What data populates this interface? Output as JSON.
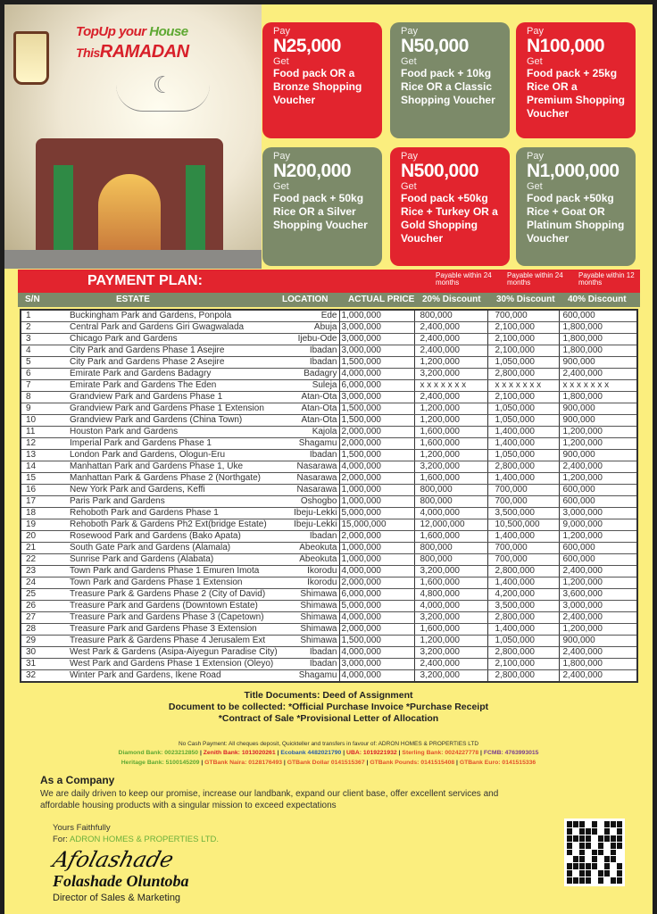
{
  "header": {
    "title_line1_a": "TopUp your ",
    "title_line1_b": "House",
    "title_line2_a": "This",
    "title_line2_b": "RAMADAN"
  },
  "offers": [
    {
      "pay": "Pay",
      "amount": "N25,000",
      "get": "Get",
      "desc": "Food pack OR a Bronze Shopping Voucher",
      "color": "#e2242e"
    },
    {
      "pay": "Pay",
      "amount": "N50,000",
      "get": "Get",
      "desc": "Food pack + 10kg Rice OR a Classic Shopping Voucher",
      "color": "#7c8a69"
    },
    {
      "pay": "Pay",
      "amount": "N100,000",
      "get": "Get",
      "desc": "Food pack + 25kg Rice OR a Premium Shopping Voucher",
      "color": "#e2242e"
    },
    {
      "pay": "Pay",
      "amount": "N200,000",
      "get": "Get",
      "desc": "Food pack + 50kg Rice OR a Silver Shopping Voucher",
      "color": "#7c8a69"
    },
    {
      "pay": "Pay",
      "amount": "N500,000",
      "get": "Get",
      "desc": "Food pack +50kg Rice + Turkey OR a Gold Shopping Voucher",
      "color": "#e2242e"
    },
    {
      "pay": "Pay",
      "amount": "N1,000,000",
      "get": "Get",
      "desc": "Food pack +50kg Rice + Goat OR Platinum Shopping Voucher",
      "color": "#7c8a69"
    }
  ],
  "plan": {
    "title": "PAYMENT PLAN:",
    "payable": [
      "Payable within 24 months",
      "Payable within 24 months",
      "Payable within 12 months"
    ],
    "columns": [
      "S/N",
      "ESTATE",
      "LOCATION",
      "ACTUAL PRICE",
      "20% Discount",
      "30% Discount",
      "40% Discount"
    ],
    "rows": [
      [
        "1",
        "Buckingham Park and Gardens, Ponpola",
        "Ede",
        "1,000,000",
        "800,000",
        "700,000",
        "600,000"
      ],
      [
        "2",
        "Central Park and Gardens Giri Gwagwalada",
        "Abuja",
        "3,000,000",
        "2,400,000",
        "2,100,000",
        "1,800,000"
      ],
      [
        "3",
        "Chicago Park and Gardens",
        "Ijebu-Ode",
        "3,000,000",
        "2,400,000",
        "2,100,000",
        "1,800,000"
      ],
      [
        "4",
        "City Park and Gardens Phase 1 Asejire",
        "Ibadan",
        "3,000,000",
        "2,400,000",
        "2,100,000",
        "1,800,000"
      ],
      [
        "5",
        "City Park and Gardens Phase 2 Asejire",
        "Ibadan",
        "1,500,000",
        "1,200,000",
        "1,050,000",
        "900,000"
      ],
      [
        "6",
        "Emirate Park and Gardens Badagry",
        "Badagry",
        "4,000,000",
        "3,200,000",
        "2,800,000",
        "2,400,000"
      ],
      [
        "7",
        "Emirate Park and Gardens The Eden",
        "Suleja",
        "6,000,000",
        "x x x x x x x",
        "x x x x x x x",
        "x x x x x x x"
      ],
      [
        "8",
        "Grandview Park and Gardens Phase 1",
        "Atan-Ota",
        "3,000,000",
        "2,400,000",
        "2,100,000",
        "1,800,000"
      ],
      [
        "9",
        "Grandview Park and Gardens Phase 1 Extension",
        "Atan-Ota",
        "1,500,000",
        "1,200,000",
        "1,050,000",
        "900,000"
      ],
      [
        "10",
        "Grandview Park and Gardens (China Town)",
        "Atan-Ota",
        "1,500,000",
        "1,200,000",
        "1,050,000",
        "900,000"
      ],
      [
        "11",
        "Houston Park and Gardens",
        "Kajola",
        "2,000,000",
        "1,600,000",
        "1,400,000",
        "1,200,000"
      ],
      [
        "12",
        "Imperial Park and Gardens Phase 1",
        "Shagamu",
        "2,000,000",
        "1,600,000",
        "1,400,000",
        "1,200,000"
      ],
      [
        "13",
        "London Park and Gardens, Ologun-Eru",
        "Ibadan",
        "1,500,000",
        "1,200,000",
        "1,050,000",
        "900,000"
      ],
      [
        "14",
        "Manhattan Park and Gardens Phase 1, Uke",
        "Nasarawa",
        "4,000,000",
        "3,200,000",
        "2,800,000",
        "2,400,000"
      ],
      [
        "15",
        "Manhattan Park & Gardens Phase 2 (Northgate)",
        "Nasarawa",
        "2,000,000",
        "1,600,000",
        "1,400,000",
        "1,200,000"
      ],
      [
        "16",
        "New York Park and Gardens, Keffi",
        "Nasarawa",
        "1,000,000",
        "800,000",
        "700,000",
        "600,000"
      ],
      [
        "17",
        "Paris Park and Gardens",
        "Oshogbo",
        "1,000,000",
        "800,000",
        "700,000",
        "600,000"
      ],
      [
        "18",
        "Rehoboth Park and Gardens Phase 1",
        "Ibeju-Lekki",
        "5,000,000",
        "4,000,000",
        "3,500,000",
        "3,000,000"
      ],
      [
        "19",
        "Rehoboth Park & Gardens Ph2 Ext(bridge Estate)",
        "Ibeju-Lekki",
        "15,000,000",
        "12,000,000",
        "10,500,000",
        "9,000,000"
      ],
      [
        "20",
        "Rosewood Park and Gardens (Bako Apata)",
        "Ibadan",
        "2,000,000",
        "1,600,000",
        "1,400,000",
        "1,200,000"
      ],
      [
        "21",
        "South Gate Park and Gardens (Alamala)",
        "Abeokuta",
        "1,000,000",
        "800,000",
        "700,000",
        "600,000"
      ],
      [
        "22",
        "Sunrise Park and Gardens (Alabata)",
        "Abeokuta",
        "1,000,000",
        "800,000",
        "700,000",
        "600,000"
      ],
      [
        "23",
        "Town Park and Gardens Phase 1 Emuren Imota",
        "Ikorodu",
        "4,000,000",
        "3,200,000",
        "2,800,000",
        "2,400,000"
      ],
      [
        "24",
        "Town Park and Gardens Phase 1 Extension",
        "Ikorodu",
        "2,000,000",
        "1,600,000",
        "1,400,000",
        "1,200,000"
      ],
      [
        "25",
        "Treasure Park & Gardens Phase 2 (City of David)",
        "Shimawa",
        "6,000,000",
        "4,800,000",
        "4,200,000",
        "3,600,000"
      ],
      [
        "26",
        "Treasure Park and Gardens (Downtown Estate)",
        "Shimawa",
        "5,000,000",
        "4,000,000",
        "3,500,000",
        "3,000,000"
      ],
      [
        "27",
        "Treasure Park and Gardens Phase 3 (Capetown)",
        "Shimawa",
        "4,000,000",
        "3,200,000",
        "2,800,000",
        "2,400,000"
      ],
      [
        "28",
        "Treasure Park and Gardens Phase 3 Extension",
        "Shimawa",
        "2,000,000",
        "1,600,000",
        "1,400,000",
        "1,200,000"
      ],
      [
        "29",
        "Treasure Park & Gardens Phase 4 Jerusalem Ext",
        "Shimawa",
        "1,500,000",
        "1,200,000",
        "1,050,000",
        "900,000"
      ],
      [
        "30",
        "West Park & Gardens (Asipa-Aiyegun Paradise City)",
        "Ibadan",
        "4,000,000",
        "3,200,000",
        "2,800,000",
        "2,400,000"
      ],
      [
        "31",
        "West Park and Gardens Phase 1 Extension (Oleyo)",
        "Ibadan",
        "3,000,000",
        "2,400,000",
        "2,100,000",
        "1,800,000"
      ],
      [
        "32",
        "Winter Park and Gardens, Ikene Road",
        "Shagamu",
        "4,000,000",
        "3,200,000",
        "2,800,000",
        "2,400,000"
      ]
    ]
  },
  "documents": [
    "Title Documents: Deed of Assignment",
    "Document to be collected: *Official Purchase Invoice *Purchase Receipt",
    "*Contract of Sale  *Provisional Letter of Allocation"
  ],
  "payment_note": "No Cash Payment: All cheques deposit, Quickteller and transfers in favour of: ADRON HOMES & PROPERTIES LTD",
  "banks_line1": [
    {
      "label": "Diamond Bank: 0023212850",
      "color": "#5ea832"
    },
    {
      "label": "Zenith Bank: 1013020261",
      "color": "#d8202a"
    },
    {
      "label": "Ecobank 4482021790",
      "color": "#2f5fa8"
    },
    {
      "label": "UBA: 1019221932",
      "color": "#d8202a"
    },
    {
      "label": "Sterling Bank: 0024227778",
      "color": "#e2502a"
    },
    {
      "label": "FCMB: 4763993015",
      "color": "#7a3c8e"
    }
  ],
  "banks_line2": [
    {
      "label": "Heritage Bank: 5100145209",
      "color": "#5ea832"
    },
    {
      "label": "GTBank Naira: 0128176493",
      "color": "#e2502a"
    },
    {
      "label": "GTBank Dollar 0141515367",
      "color": "#e2502a"
    },
    {
      "label": "GTBank Pounds: 0141515408",
      "color": "#e2502a"
    },
    {
      "label": "GTBank Euro: 0141515336",
      "color": "#e2502a"
    }
  ],
  "company": {
    "heading": "As a Company",
    "text": "We are daily driven to keep our promise, increase our landbank, expand our client base, offer excellent services and affordable housing products with a singular mission to exceed expectations"
  },
  "signoff": {
    "yours": "Yours Faithfully",
    "for_label": "For: ",
    "for_company": "ADRON HOMES & PROPERTIES LTD.",
    "signature": "Afolashade",
    "name": "Folashade Oluntoba",
    "role": "Director of Sales & Marketing"
  }
}
